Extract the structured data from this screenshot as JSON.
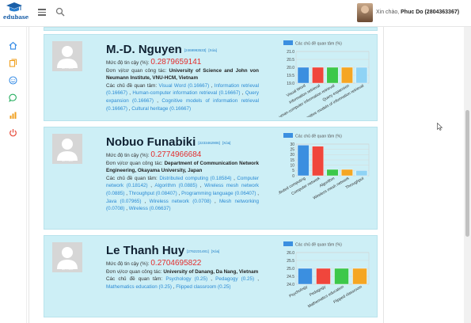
{
  "header": {
    "logo_text": "edubase",
    "greeting_prefix": "Xin chào, ",
    "user_name": "Phuc Do (2804363367)"
  },
  "sidebar": {
    "items": [
      {
        "icon": "home-icon"
      },
      {
        "icon": "documents-icon"
      },
      {
        "icon": "smile-icon"
      },
      {
        "icon": "chat-icon"
      },
      {
        "icon": "chart-icon"
      },
      {
        "icon": "power-icon"
      }
    ]
  },
  "labels": {
    "confidence": "Mức độ tin cậy (%): ",
    "affiliation": "Đơn vị/cơ quan công tác: ",
    "interests": "Các chủ đề quan tâm: ",
    "no_photo": "No Photo",
    "delete": "[Xóa]"
  },
  "profiles": [
    {
      "name": "M.-D. Nguyen",
      "id": "[2469993533]",
      "confidence": "0.2879659141",
      "affiliation": "University of Science and John von Neumann Institute, VNU-HCM, Vietnam",
      "interests": [
        "Visual Word (0.16667)",
        "Information retrieval (0.16667)",
        "Human-computer information retrieval (0.16667)",
        "Query expansion (0.16667)",
        "Cognitive models of information retrieval (0.16667)",
        "Cultural heritage (0.16667)"
      ]
    },
    {
      "name": "Nobuo Funabiki",
      "id": "[2233462906]",
      "confidence": "0.2774966684",
      "affiliation": "Department of Communication Network Engineering, Okayama University, Japan",
      "interests": [
        "Distributed computing (0.18584)",
        "Computer network (0.18142)",
        "Algorithm (0.0885)",
        "Wireless mesh network (0.0885)",
        "Throughput (0.08407)",
        "Programming language (0.06407)",
        "Java (0.07965)",
        "Wireless network (0.0708)",
        "Mesh networking (0.0708)",
        "Wireless (0.06637)"
      ]
    },
    {
      "name": "Le Thanh Huy",
      "id": "[2762231481]",
      "confidence": "0.2704695822",
      "affiliation": "University of Danang, Da Nang, Vietnam",
      "interests": [
        "Psychology (0.25)",
        "Pedagogy (0.25)",
        "Mathematics education (0.25)",
        "Flipped classroom (0.25)"
      ]
    }
  ],
  "chart_data": [
    {
      "type": "bar",
      "legend": "Các chủ đề quan tâm (%)",
      "categories": [
        "Visual Word",
        "Information retrieval",
        "Human-computer information retrieval",
        "Query expansion",
        "Cognitive models of information retrieval"
      ],
      "values": [
        20,
        20,
        20,
        20,
        20
      ],
      "ylim": [
        19.0,
        21.0
      ],
      "yticks": [
        "19.0",
        "19.5",
        "20.0",
        "20.5",
        "21.0"
      ],
      "colors": [
        "#3b8fe0",
        "#f0463c",
        "#3cc84a",
        "#f5a623",
        "#8fd3f5"
      ]
    },
    {
      "type": "bar",
      "legend": "Các chủ đề quan tâm (%)",
      "categories": [
        "Distributed computing",
        "Computer network",
        "Algorithm",
        "Wireless mesh network",
        "Throughput"
      ],
      "values": [
        29,
        28,
        6,
        6,
        5
      ],
      "ylim": [
        0,
        30
      ],
      "yticks": [
        "0",
        "5",
        "10",
        "15",
        "20",
        "25",
        "30"
      ],
      "colors": [
        "#3b8fe0",
        "#f0463c",
        "#3cc84a",
        "#f5a623",
        "#8fd3f5"
      ]
    },
    {
      "type": "bar",
      "legend": "Các chủ đề quan tâm (%)",
      "categories": [
        "Psychology",
        "Pedagogy",
        "Mathematics education",
        "Flipped classroom"
      ],
      "values": [
        25,
        25,
        25,
        25
      ],
      "ylim": [
        24.0,
        26.0
      ],
      "yticks": [
        "24.0",
        "24.5",
        "25.0",
        "25.5",
        "26.0"
      ],
      "colors": [
        "#3b8fe0",
        "#f0463c",
        "#3cc84a",
        "#f5a623"
      ]
    }
  ]
}
